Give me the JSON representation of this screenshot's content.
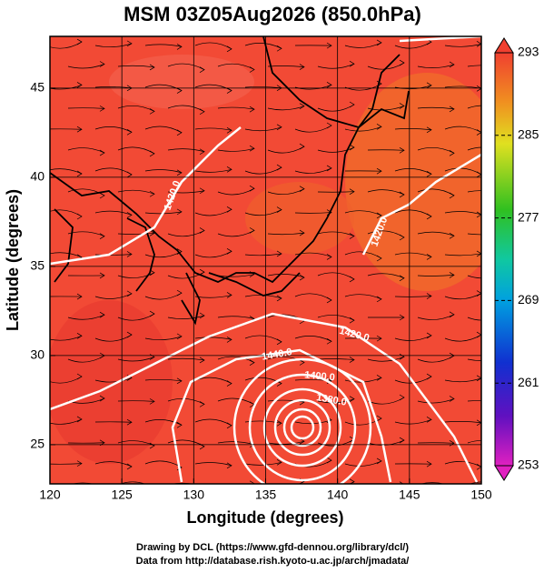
{
  "chart_data": {
    "type": "map",
    "title": "MSM 03Z05Aug2026 (850.0hPa)",
    "x_label": "Longitude (degrees)",
    "y_label": "Latitude  (degrees)",
    "xlim": [
      120,
      150
    ],
    "xticks": [
      120,
      125,
      130,
      135,
      140,
      145,
      150
    ],
    "ylim": [
      22.8,
      47.9
    ],
    "yticks": [
      25,
      30,
      35,
      40,
      45
    ],
    "grid": true,
    "colorbar": {
      "lim": [
        253,
        293
      ],
      "ticks": [
        253,
        261,
        269,
        277,
        285,
        293
      ]
    },
    "contour_labels": [
      "1420.0",
      "1420.0",
      "1440.0",
      "1400.0",
      "1380.0",
      "1420.0"
    ],
    "footer": [
      "Drawing by DCL (https://www.gfd-dennou.org/library/dcl/)",
      "Data from http://database.rish.kyoto-u.ac.jp/arch/jmadata/"
    ]
  }
}
